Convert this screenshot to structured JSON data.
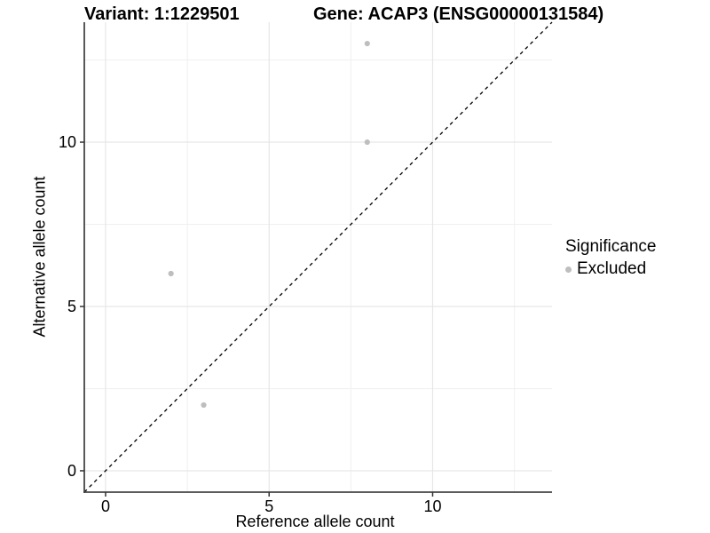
{
  "titles": {
    "variant": "Variant: 1:1229501",
    "gene": "Gene: ACAP3 (ENSG00000131584)"
  },
  "legend": {
    "title": "Significance",
    "items": [
      {
        "label": "Excluded",
        "color": "#bebebe"
      }
    ]
  },
  "chart_data": {
    "type": "scatter",
    "title_left": "Variant: 1:1229501",
    "title_right": "Gene: ACAP3 (ENSG00000131584)",
    "xlabel": "Reference allele count",
    "ylabel": "Alternative allele count",
    "xlim": [
      -0.65,
      13.65
    ],
    "ylim": [
      -0.65,
      13.65
    ],
    "x_ticks": [
      0,
      5,
      10
    ],
    "y_ticks": [
      0,
      5,
      10
    ],
    "x_minor_ticks": [
      2.5,
      7.5,
      12.5
    ],
    "y_minor_ticks": [
      2.5,
      7.5,
      12.5
    ],
    "grid": "major+minor",
    "legend_position": "right",
    "series": [
      {
        "name": "Excluded",
        "color": "#bebebe",
        "points": [
          [
            8,
            13
          ],
          [
            8,
            10
          ],
          [
            2,
            6
          ],
          [
            3,
            2
          ]
        ]
      }
    ],
    "reference_line": {
      "type": "identity",
      "style": "dashed",
      "color": "#000000"
    },
    "colors": {
      "major_grid": "#e6e6e6",
      "minor_grid": "#f0f0f0",
      "axis_line": "#454545",
      "tick_mark": "#333333",
      "tick_label": "#000000"
    }
  }
}
